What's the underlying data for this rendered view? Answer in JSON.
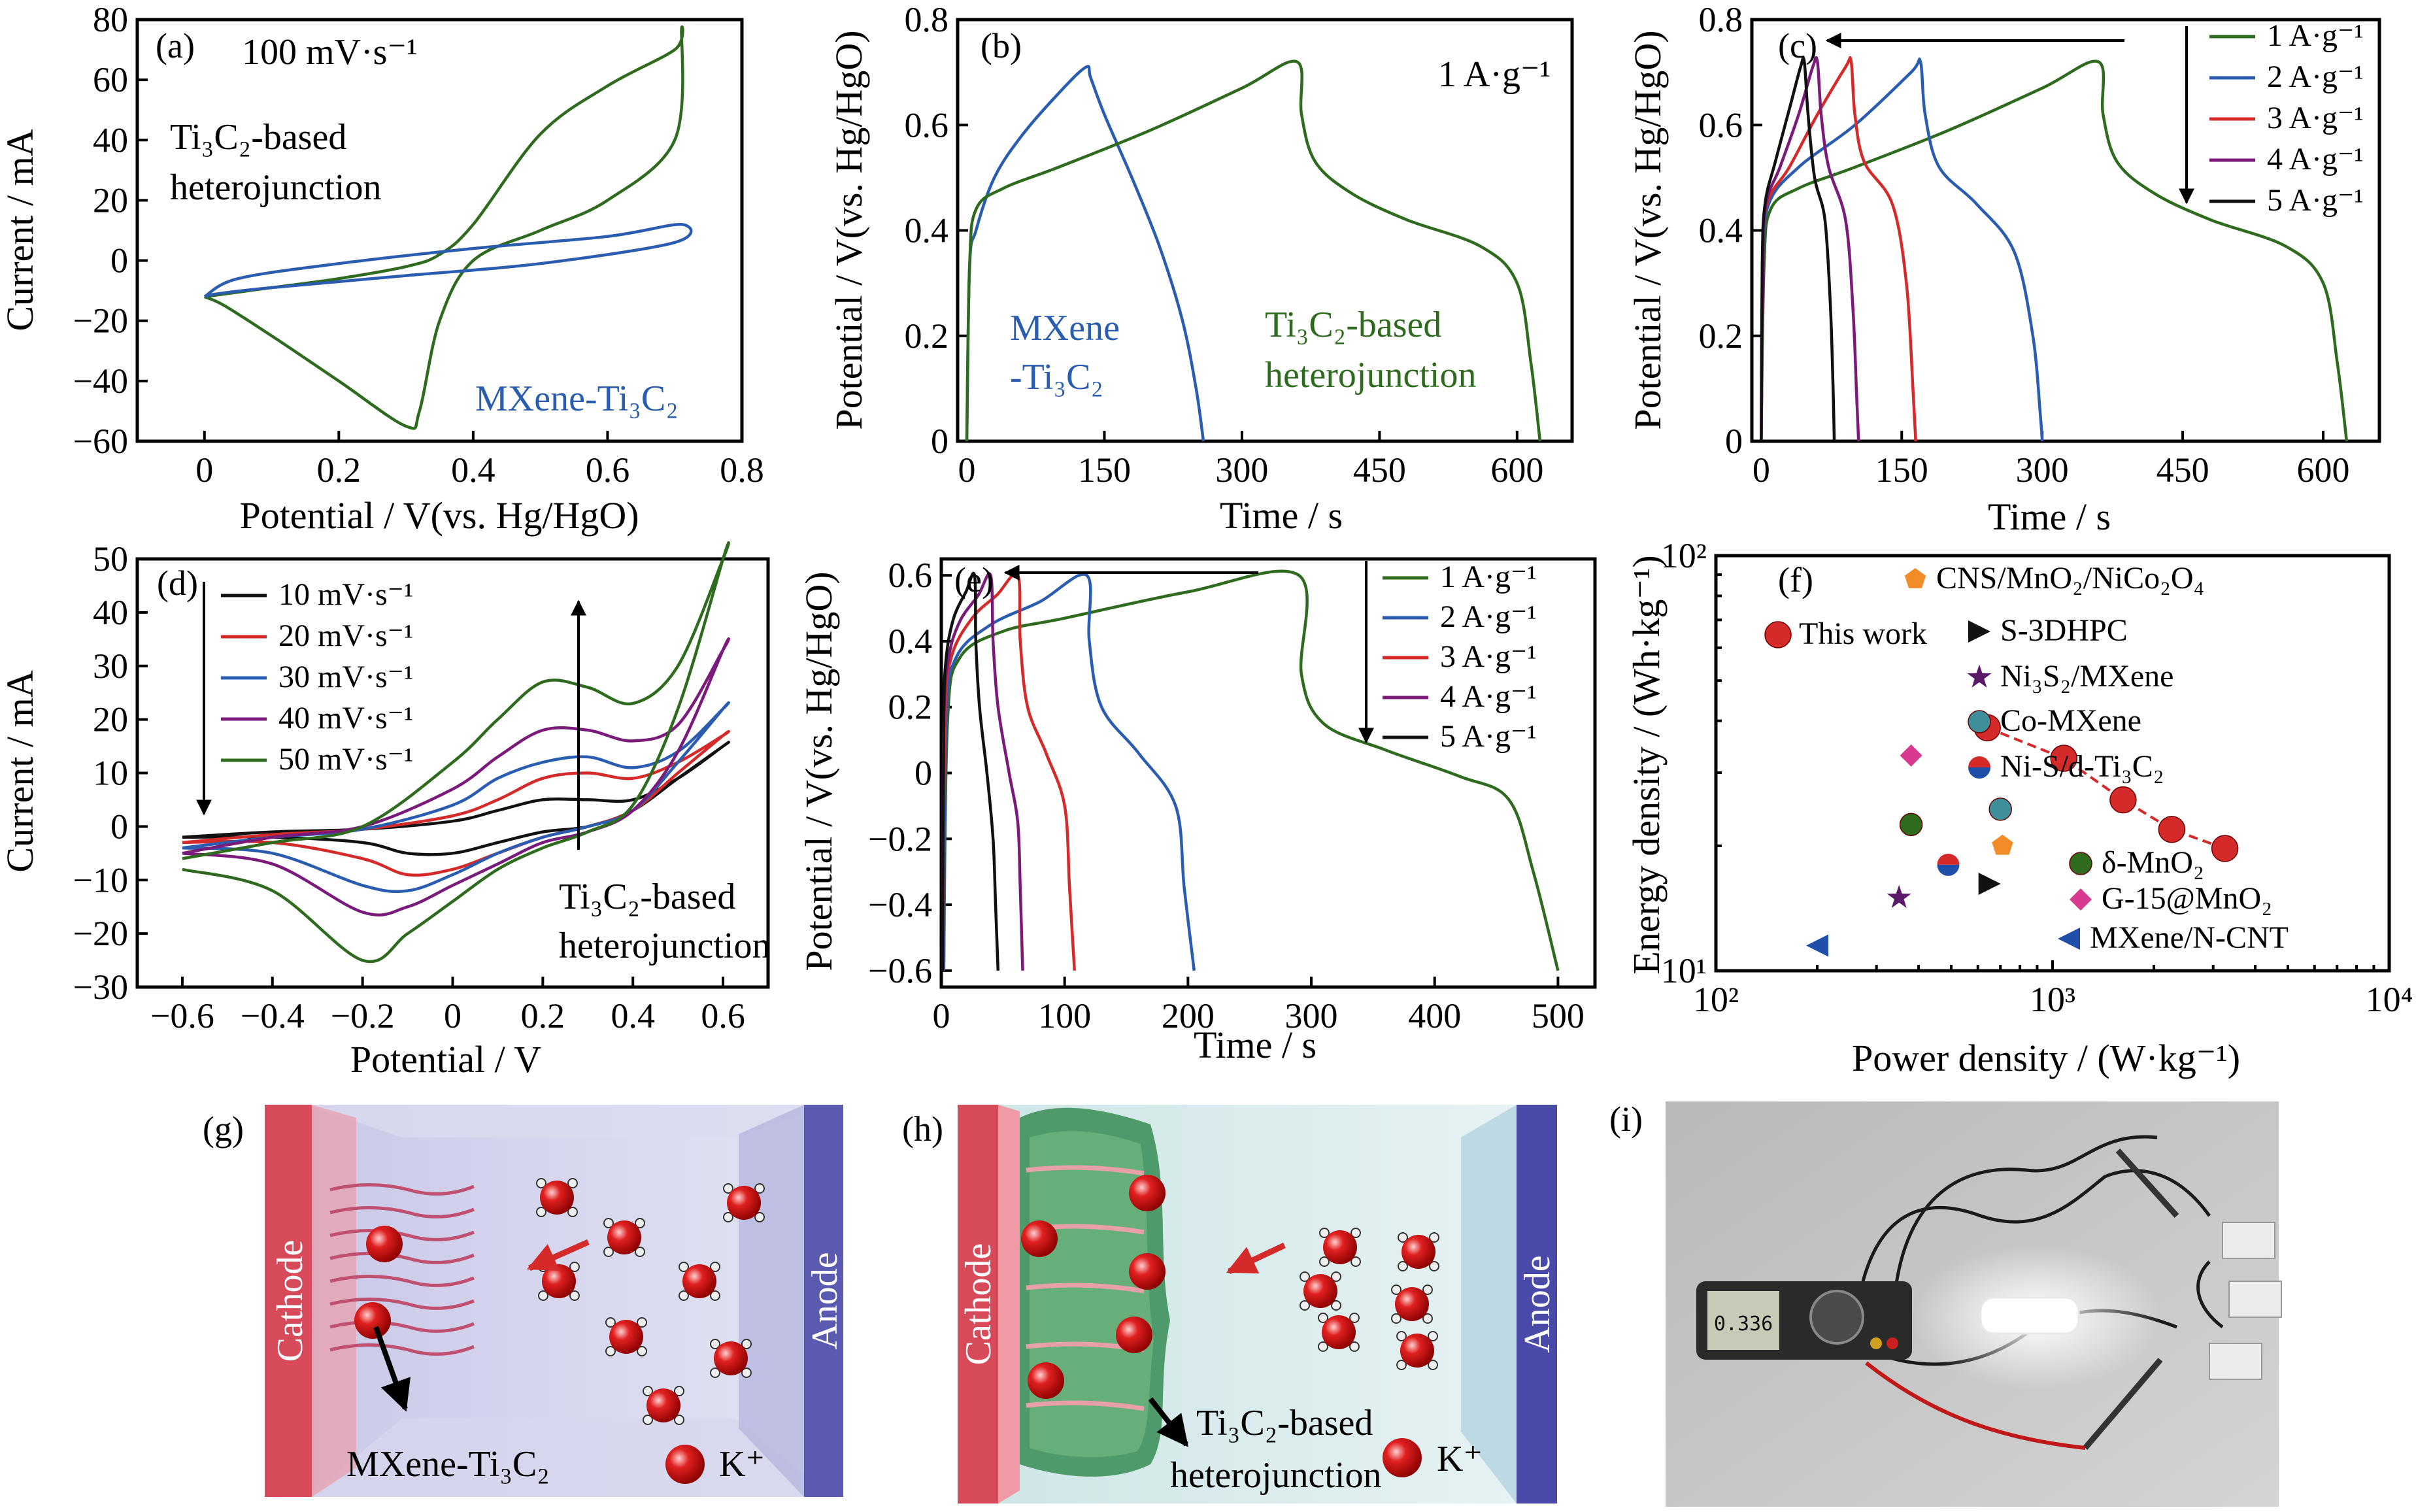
{
  "colors": {
    "green": "#2e6b1e",
    "blue": "#2a5db0",
    "red": "#d42a2a",
    "purple": "#7a1a7a",
    "black": "#111111",
    "orange": "#f28c28",
    "teal": "#3f8f9a",
    "magenta": "#d83a8f",
    "navy": "#1f4fa8",
    "darkpurple": "#5a1a6a"
  },
  "panels": {
    "a": {
      "tag": "(a)",
      "scan_rate": "100 mV·s⁻¹",
      "heterojunction_label_1": "Ti₃C₂-based",
      "heterojunction_label_2": "heterojunction",
      "mxene_label": "MXene-Ti₃C₂",
      "xlabel": "Potential / V(vs. Hg/HgO)",
      "ylabel": "Current / mA",
      "xticks": [
        "0",
        "0.2",
        "0.4",
        "0.6",
        "0.8"
      ],
      "yticks": [
        "80",
        "60",
        "40",
        "20",
        "0",
        "−20",
        "−40",
        "−60"
      ]
    },
    "b": {
      "tag": "(b)",
      "current_density": "1 A·g⁻¹",
      "mxene_label_1": "MXene",
      "mxene_label_2": "-Ti₃C₂",
      "hetero_label_1": "Ti₃C₂-based",
      "hetero_label_2": "heterojunction",
      "xlabel": "Time / s",
      "ylabel": "Potential / V(vs. Hg/HgO)",
      "xticks": [
        "0",
        "150",
        "300",
        "450",
        "600"
      ],
      "yticks": [
        "0.8",
        "0.6",
        "0.4",
        "0.2",
        "0"
      ]
    },
    "c": {
      "tag": "(c)",
      "xlabel": "Time / s",
      "ylabel": "Potential / V(vs. Hg/HgO)",
      "xticks": [
        "0",
        "150",
        "300",
        "450",
        "600"
      ],
      "yticks": [
        "0.8",
        "0.6",
        "0.4",
        "0.2",
        "0"
      ],
      "legend": [
        "1 A·g⁻¹",
        "2 A·g⁻¹",
        "3 A·g⁻¹",
        "4 A·g⁻¹",
        "5 A·g⁻¹"
      ]
    },
    "d": {
      "tag": "(d)",
      "xlabel": "Potential / V",
      "ylabel": "Current / mA",
      "xticks": [
        "−0.6",
        "−0.4",
        "−0.2",
        "0",
        "0.2",
        "0.4",
        "0.6"
      ],
      "yticks": [
        "50",
        "40",
        "30",
        "20",
        "10",
        "0",
        "−10",
        "−20",
        "−30"
      ],
      "legend": [
        "10 mV·s⁻¹",
        "20 mV·s⁻¹",
        "30 mV·s⁻¹",
        "40 mV·s⁻¹",
        "50 mV·s⁻¹"
      ],
      "hetero_label_1": "Ti₃C₂-based",
      "hetero_label_2": "heterojunction"
    },
    "e": {
      "tag": "(e)",
      "xlabel": "Time / s",
      "ylabel": "Potential / V(vs. Hg/HgO)",
      "xticks": [
        "0",
        "100",
        "200",
        "300",
        "400",
        "500"
      ],
      "yticks": [
        "0.6",
        "0.4",
        "0.2",
        "0",
        "−0.2",
        "−0.4",
        "−0.6"
      ],
      "legend": [
        "1 A·g⁻¹",
        "2 A·g⁻¹",
        "3 A·g⁻¹",
        "4 A·g⁻¹",
        "5 A·g⁻¹"
      ]
    },
    "f": {
      "tag": "(f)",
      "xlabel": "Power density / (W·kg⁻¹)",
      "ylabel": "Energy density / (Wh·kg⁻¹)",
      "xticks": [
        "10²",
        "10³",
        "10⁴"
      ],
      "yticks": [
        "10²",
        "10¹"
      ],
      "legend": [
        "CNS/MnO₂/NiCo₂O₄",
        "This work",
        "S-3DHPC",
        "Ni₃S₂/MXene",
        "Co-MXene",
        "Ni-S/d-Ti₃C₂",
        "δ-MnO₂",
        "G-15@MnO₂",
        "MXene/N-CNT"
      ]
    },
    "g": {
      "tag": "(g)",
      "cathode": "Cathode",
      "anode": "Anode",
      "material": "MXene-Ti₃C₂",
      "ion": "K⁺"
    },
    "h": {
      "tag": "(h)",
      "cathode": "Cathode",
      "anode": "Anode",
      "material_1": "Ti₃C₂-based",
      "material_2": "heterojunction",
      "ion": "K⁺"
    },
    "i": {
      "tag": "(i)",
      "meter_reading": "0.336"
    }
  },
  "chart_data": [
    {
      "panel": "a",
      "type": "line",
      "xlabel": "Potential / V(vs. Hg/HgO)",
      "ylabel": "Current / mA",
      "xlim": [
        -0.1,
        0.8
      ],
      "ylim": [
        -60,
        80
      ],
      "series": [
        {
          "name": "Ti₃C₂-based heterojunction",
          "color": "green",
          "x": [
            0,
            0.1,
            0.2,
            0.3,
            0.35,
            0.4,
            0.5,
            0.6,
            0.7,
            0.71,
            0.7,
            0.6,
            0.5,
            0.4,
            0.35,
            0.32,
            0.3,
            0.2,
            0.1,
            0.03,
            0
          ],
          "y": [
            -12,
            -9,
            -6,
            -2,
            2,
            12,
            42,
            58,
            70,
            76,
            40,
            20,
            10,
            0,
            -20,
            -50,
            -55,
            -40,
            -25,
            -15,
            -12
          ]
        },
        {
          "name": "MXene-Ti₃C₂",
          "color": "blue",
          "x": [
            0,
            0.05,
            0.2,
            0.4,
            0.6,
            0.71,
            0.7,
            0.5,
            0.3,
            0.1,
            0.02,
            0
          ],
          "y": [
            -12,
            -6,
            -1,
            4,
            8,
            12,
            6,
            -1,
            -5,
            -9,
            -11,
            -12
          ]
        }
      ]
    },
    {
      "panel": "b",
      "type": "line",
      "xlabel": "Time / s",
      "ylabel": "Potential / V(vs. Hg/HgO)",
      "xlim": [
        -10,
        660
      ],
      "ylim": [
        0,
        0.8
      ],
      "series": [
        {
          "name": "MXene-Ti₃C₂",
          "color": "blue",
          "x": [
            0,
            3,
            10,
            30,
            60,
            100,
            130,
            135,
            150,
            180,
            210,
            235,
            250,
            258
          ],
          "y": [
            0,
            0.33,
            0.4,
            0.5,
            0.58,
            0.66,
            0.71,
            0.69,
            0.62,
            0.5,
            0.37,
            0.23,
            0.1,
            0
          ]
        },
        {
          "name": "Ti₃C₂-based heterojunction",
          "color": "green",
          "x": [
            0,
            3,
            10,
            40,
            100,
            200,
            300,
            360,
            365,
            380,
            420,
            480,
            560,
            600,
            615,
            625
          ],
          "y": [
            0,
            0.33,
            0.44,
            0.48,
            0.52,
            0.59,
            0.67,
            0.72,
            0.62,
            0.53,
            0.47,
            0.42,
            0.37,
            0.3,
            0.15,
            0
          ]
        }
      ]
    },
    {
      "panel": "c",
      "type": "line",
      "xlabel": "Time / s",
      "ylabel": "Potential / V(vs. Hg/HgO)",
      "xlim": [
        -10,
        660
      ],
      "ylim": [
        0,
        0.8
      ],
      "series": [
        {
          "name": "1 A·g⁻¹",
          "color": "green",
          "x": [
            0,
            3,
            10,
            40,
            100,
            200,
            300,
            360,
            365,
            380,
            420,
            480,
            560,
            600,
            615,
            625
          ],
          "y": [
            0,
            0.33,
            0.44,
            0.48,
            0.52,
            0.59,
            0.67,
            0.72,
            0.62,
            0.53,
            0.47,
            0.42,
            0.37,
            0.3,
            0.15,
            0
          ]
        },
        {
          "name": "2 A·g⁻¹",
          "color": "blue",
          "x": [
            0,
            2,
            8,
            40,
            100,
            160,
            170,
            175,
            190,
            230,
            270,
            290,
            298,
            300
          ],
          "y": [
            0,
            0.33,
            0.45,
            0.52,
            0.6,
            0.7,
            0.72,
            0.62,
            0.52,
            0.45,
            0.36,
            0.2,
            0.05,
            0
          ]
        },
        {
          "name": "3 A·g⁻¹",
          "color": "red",
          "x": [
            0,
            2,
            6,
            30,
            60,
            90,
            96,
            100,
            110,
            140,
            155,
            162,
            165
          ],
          "y": [
            0,
            0.33,
            0.45,
            0.52,
            0.62,
            0.71,
            0.72,
            0.62,
            0.53,
            0.45,
            0.3,
            0.1,
            0
          ]
        },
        {
          "name": "4 A·g⁻¹",
          "color": "purple",
          "x": [
            0,
            2,
            5,
            20,
            40,
            55,
            60,
            64,
            72,
            90,
            98,
            102,
            104
          ],
          "y": [
            0,
            0.33,
            0.45,
            0.52,
            0.62,
            0.71,
            0.72,
            0.62,
            0.52,
            0.42,
            0.25,
            0.08,
            0
          ]
        },
        {
          "name": "5 A·g⁻¹",
          "color": "black",
          "x": [
            0,
            1,
            4,
            15,
            30,
            42,
            46,
            50,
            57,
            68,
            74,
            77,
            78
          ],
          "y": [
            0,
            0.33,
            0.45,
            0.53,
            0.63,
            0.71,
            0.72,
            0.62,
            0.5,
            0.42,
            0.25,
            0.08,
            0
          ]
        }
      ]
    },
    {
      "panel": "d",
      "type": "line",
      "xlabel": "Potential / V",
      "ylabel": "Current / mA",
      "xlim": [
        -0.7,
        0.7
      ],
      "ylim": [
        -30,
        50
      ],
      "series": [
        {
          "name": "10 mV·s⁻¹",
          "color": "black",
          "x": [
            -0.6,
            -0.4,
            -0.2,
            0,
            0.1,
            0.2,
            0.3,
            0.4,
            0.5,
            0.6,
            0.6,
            0.5,
            0.4,
            0.3,
            0.2,
            0.1,
            0,
            -0.1,
            -0.2,
            -0.4,
            -0.6
          ],
          "y": [
            -2,
            -1,
            -0.5,
            1,
            3,
            5,
            5,
            5,
            9,
            15,
            15,
            9,
            3,
            0,
            -1,
            -3,
            -5,
            -5,
            -3,
            -2,
            -2
          ]
        },
        {
          "name": "20 mV·s⁻¹",
          "color": "red",
          "x": [
            -0.6,
            -0.4,
            -0.2,
            0,
            0.1,
            0.2,
            0.3,
            0.4,
            0.5,
            0.6,
            0.6,
            0.5,
            0.4,
            0.3,
            0.2,
            0.1,
            0,
            -0.1,
            -0.2,
            -0.4,
            -0.6
          ],
          "y": [
            -3,
            -1.5,
            -0.5,
            2,
            5,
            9,
            10,
            9,
            12,
            17,
            17,
            10,
            3,
            0,
            -2,
            -5,
            -8,
            -9,
            -6,
            -3,
            -3
          ]
        },
        {
          "name": "30 mV·s⁻¹",
          "color": "blue",
          "x": [
            -0.6,
            -0.4,
            -0.2,
            0,
            0.1,
            0.2,
            0.3,
            0.4,
            0.5,
            0.6,
            0.6,
            0.5,
            0.4,
            0.3,
            0.2,
            0.1,
            0,
            -0.1,
            -0.2,
            -0.4,
            -0.6
          ],
          "y": [
            -4,
            -2,
            -0.5,
            4,
            9,
            12,
            13,
            11,
            14,
            22,
            22,
            12,
            3,
            0,
            -2,
            -5,
            -9,
            -12,
            -11,
            -5,
            -4
          ]
        },
        {
          "name": "40 mV·s⁻¹",
          "color": "purple",
          "x": [
            -0.6,
            -0.4,
            -0.2,
            0,
            0.1,
            0.2,
            0.3,
            0.4,
            0.5,
            0.6,
            0.6,
            0.5,
            0.4,
            0.3,
            0.2,
            0.1,
            0,
            -0.1,
            -0.2,
            -0.4,
            -0.6
          ],
          "y": [
            -5,
            -2,
            0,
            7,
            13,
            18,
            18,
            16,
            19,
            33,
            33,
            14,
            3,
            -1,
            -3,
            -7,
            -11,
            -15,
            -16,
            -7,
            -5
          ]
        },
        {
          "name": "50 mV·s⁻¹",
          "color": "green",
          "x": [
            -0.6,
            -0.4,
            -0.2,
            0,
            0.1,
            0.2,
            0.3,
            0.4,
            0.5,
            0.6,
            0.6,
            0.5,
            0.4,
            0.3,
            0.2,
            0.1,
            0,
            -0.1,
            -0.2,
            -0.4,
            -0.6
          ],
          "y": [
            -6,
            -3,
            0,
            12,
            20,
            27,
            26,
            23,
            30,
            50,
            50,
            22,
            4,
            -1,
            -4,
            -8,
            -14,
            -20,
            -25,
            -12,
            -8
          ]
        }
      ]
    },
    {
      "panel": "e",
      "type": "line",
      "xlabel": "Time / s",
      "ylabel": "Potential / V(vs. Hg/HgO)",
      "xlim": [
        0,
        530
      ],
      "ylim": [
        -0.65,
        0.65
      ],
      "series": [
        {
          "name": "1 A·g⁻¹",
          "color": "green",
          "x": [
            2,
            5,
            15,
            50,
            100,
            200,
            290,
            292,
            310,
            360,
            420,
            460,
            480,
            500
          ],
          "y": [
            -0.6,
            0.15,
            0.35,
            0.43,
            0.47,
            0.55,
            0.6,
            0.3,
            0.15,
            0.07,
            -0.01,
            -0.08,
            -0.3,
            -0.6
          ]
        },
        {
          "name": "2 A·g⁻¹",
          "color": "blue",
          "x": [
            2,
            4,
            12,
            40,
            80,
            118,
            120,
            130,
            160,
            190,
            197,
            205
          ],
          "y": [
            -0.6,
            0.15,
            0.35,
            0.45,
            0.52,
            0.6,
            0.4,
            0.2,
            0.06,
            -0.1,
            -0.35,
            -0.6
          ]
        },
        {
          "name": "3 A·g⁻¹",
          "color": "red",
          "x": [
            1,
            3,
            8,
            25,
            45,
            62,
            64,
            70,
            85,
            100,
            104,
            108
          ],
          "y": [
            -0.6,
            0.15,
            0.35,
            0.47,
            0.54,
            0.6,
            0.4,
            0.2,
            0.06,
            -0.1,
            -0.35,
            -0.6
          ]
        },
        {
          "name": "4 A·g⁻¹",
          "color": "purple",
          "x": [
            1,
            2,
            6,
            15,
            30,
            40,
            42,
            46,
            55,
            62,
            64,
            66
          ],
          "y": [
            -0.6,
            0.15,
            0.35,
            0.46,
            0.54,
            0.6,
            0.4,
            0.2,
            0.0,
            -0.15,
            -0.35,
            -0.6
          ]
        },
        {
          "name": "5 A·g⁻¹",
          "color": "black",
          "x": [
            1,
            2,
            4,
            10,
            20,
            27,
            28,
            31,
            37,
            42,
            44,
            46
          ],
          "y": [
            -0.6,
            0.15,
            0.35,
            0.47,
            0.55,
            0.6,
            0.4,
            0.2,
            0.0,
            -0.2,
            -0.4,
            -0.6
          ]
        }
      ]
    },
    {
      "panel": "f",
      "type": "scatter",
      "xlabel": "Power density / (W·kg⁻¹)",
      "ylabel": "Energy density / (Wh·kg⁻¹)",
      "xscale": "log",
      "yscale": "log",
      "xlim": [
        100,
        10000
      ],
      "ylim": [
        10,
        100
      ],
      "series": [
        {
          "name": "This work",
          "marker": "circle",
          "color": "red",
          "connected": true,
          "x": [
            640,
            1080,
            1620,
            2260,
            3250
          ],
          "y": [
            38.5,
            32.5,
            25.8,
            21.9,
            19.7
          ]
        },
        {
          "name": "CNS/MnO₂/NiCo₂O₄",
          "marker": "pentagon",
          "color": "orange",
          "x": [
            710
          ],
          "y": [
            20
          ]
        },
        {
          "name": "S-3DHPC",
          "marker": "triangle-right",
          "color": "black",
          "x": [
            650
          ],
          "y": [
            16.2
          ]
        },
        {
          "name": "Ni₃S₂/MXene",
          "marker": "star",
          "color": "darkpurple",
          "x": [
            350
          ],
          "y": [
            15
          ]
        },
        {
          "name": "Co-MXene",
          "marker": "circle",
          "color": "teal",
          "x": [
            700
          ],
          "y": [
            24.5
          ]
        },
        {
          "name": "Ni-S/d-Ti₃C₂",
          "marker": "circle-split",
          "color": "red",
          "x": [
            490
          ],
          "y": [
            18
          ]
        },
        {
          "name": "δ-MnO₂",
          "marker": "circle",
          "color": "green",
          "x": [
            380
          ],
          "y": [
            22.5
          ]
        },
        {
          "name": "G-15@MnO₂",
          "marker": "diamond",
          "color": "magenta",
          "x": [
            380
          ],
          "y": [
            33
          ]
        },
        {
          "name": "MXene/N-CNT",
          "marker": "triangle-left",
          "color": "navy",
          "x": [
            200
          ],
          "y": [
            11.5
          ]
        }
      ]
    }
  ]
}
